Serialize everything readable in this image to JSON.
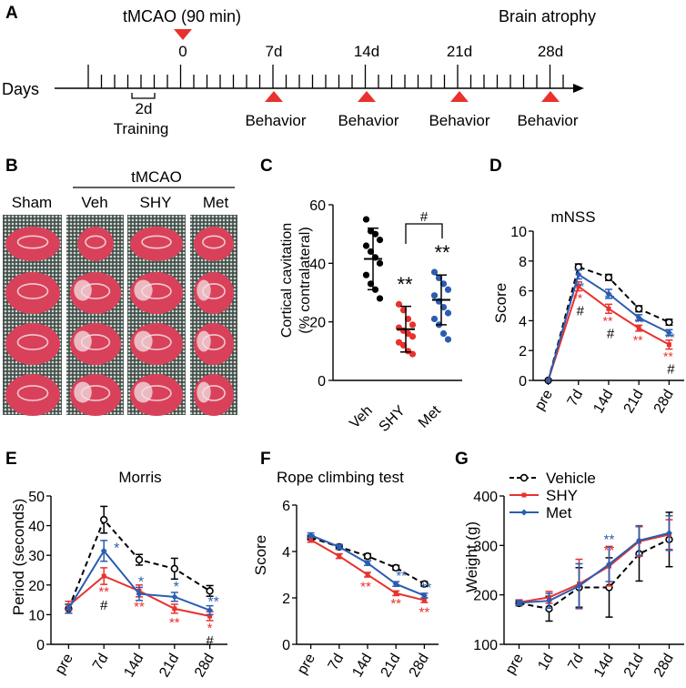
{
  "colors": {
    "vehicle": "#000000",
    "shy": "#e8322d",
    "met": "#2a5db0",
    "triangle": "#e8322d",
    "grid": "#2c3b36",
    "slice": "#d9415a"
  },
  "panelA": {
    "letter": "A",
    "mcao_label": "tMCAO (90 min)",
    "atrophy_label": "Brain atrophy",
    "days_label": "Days",
    "training_label_1": "2d",
    "training_label_2": "Training",
    "day_labels": [
      "0",
      "7d",
      "14d",
      "21d",
      "28d"
    ],
    "behavior_labels": [
      "Behavior",
      "Behavior",
      "Behavior",
      "Behavior"
    ]
  },
  "panelB": {
    "letter": "B",
    "group_header": "tMCAO",
    "columns": [
      "Sham",
      "Veh",
      "SHY",
      "Met"
    ]
  },
  "panelC": {
    "letter": "C",
    "chart_data": {
      "type": "scatter",
      "ylabel_1": "Cortical cavitation",
      "ylabel_2": "(% contralateral)",
      "categories": [
        "Veh",
        "SHY",
        "Met"
      ],
      "yticks": [
        "0",
        "20",
        "40",
        "60"
      ],
      "ylim": [
        0,
        60
      ],
      "means": [
        41.5,
        17.5,
        27.5
      ],
      "sd": [
        10.5,
        7.8,
        8.5
      ],
      "points": [
        [
          55,
          51,
          50,
          48,
          46,
          44,
          42,
          40,
          36,
          33,
          31,
          28
        ],
        [
          26,
          24,
          21,
          19,
          18,
          17,
          16,
          15,
          13,
          12,
          10,
          9
        ],
        [
          37,
          35,
          33,
          31,
          29,
          27,
          25,
          23,
          21,
          19,
          16,
          14
        ]
      ],
      "annotations": {
        "shy_sig": "**",
        "met_sig": "**",
        "bracket": "#"
      }
    }
  },
  "panelD": {
    "letter": "D",
    "chart_data": {
      "type": "line",
      "title": "mNSS",
      "ylabel": "Score",
      "x": [
        "pre",
        "7d",
        "14d",
        "21d",
        "28d"
      ],
      "yticks": [
        "0",
        "2",
        "4",
        "6",
        "8",
        "10"
      ],
      "ylim": [
        0,
        10
      ],
      "series": [
        {
          "name": "Vehicle",
          "values": [
            0,
            7.6,
            6.9,
            4.8,
            3.9
          ],
          "err": [
            0,
            0.2,
            0.2,
            0.2,
            0.2
          ]
        },
        {
          "name": "SHY",
          "values": [
            0,
            6.3,
            4.8,
            3.5,
            2.4
          ],
          "err": [
            0,
            0.3,
            0.3,
            0.2,
            0.3
          ]
        },
        {
          "name": "Met",
          "values": [
            0,
            7.1,
            5.8,
            4.2,
            3.2
          ],
          "err": [
            0,
            0.3,
            0.3,
            0.2,
            0.2
          ]
        }
      ],
      "annotations": {
        "met": [
          "**",
          "**",
          "**",
          "**"
        ],
        "shy": [
          "**",
          "**",
          "**",
          "**"
        ],
        "hash": [
          "#",
          "#",
          "#"
        ]
      }
    }
  },
  "panelE": {
    "letter": "E",
    "chart_data": {
      "type": "line",
      "title": "Morris",
      "ylabel": "Period (seconds)",
      "x": [
        "pre",
        "7d",
        "14d",
        "21d",
        "28d"
      ],
      "yticks": [
        "0",
        "10",
        "20",
        "30",
        "40",
        "50"
      ],
      "ylim": [
        0,
        50
      ],
      "series": [
        {
          "name": "Vehicle",
          "values": [
            12,
            42,
            28.5,
            25.5,
            18
          ],
          "err": [
            1.5,
            4.5,
            1.8,
            3.5,
            1.8
          ]
        },
        {
          "name": "SHY",
          "values": [
            13,
            23,
            18,
            12,
            9.5
          ],
          "err": [
            1.5,
            2.8,
            2.0,
            1.5,
            1.5
          ]
        },
        {
          "name": "Met",
          "values": [
            12,
            31.5,
            17,
            16,
            11.5
          ],
          "err": [
            1.5,
            3.5,
            2.2,
            1.5,
            1.5
          ]
        }
      ],
      "annotations": {
        "met": [
          "*",
          "*",
          "*",
          "**"
        ],
        "shy": [
          "**",
          "**",
          "**",
          "*"
        ],
        "hash": [
          "#",
          "#"
        ]
      }
    }
  },
  "panelF": {
    "letter": "F",
    "chart_data": {
      "type": "line",
      "title": "Rope climbing test",
      "ylabel": "Score",
      "x": [
        "pre",
        "7d",
        "14d",
        "21d",
        "28d"
      ],
      "yticks": [
        "0",
        "2",
        "4",
        "6"
      ],
      "ylim": [
        0,
        6
      ],
      "series": [
        {
          "name": "Vehicle",
          "values": [
            4.6,
            4.2,
            3.8,
            3.3,
            2.6
          ],
          "err": [
            0.1,
            0.1,
            0.1,
            0.1,
            0.1
          ]
        },
        {
          "name": "SHY",
          "values": [
            4.5,
            3.8,
            3.0,
            2.2,
            1.9
          ],
          "err": [
            0.1,
            0.1,
            0.1,
            0.1,
            0.1
          ]
        },
        {
          "name": "Met",
          "values": [
            4.7,
            4.2,
            3.5,
            2.6,
            2.1
          ],
          "err": [
            0.1,
            0.1,
            0.1,
            0.1,
            0.1
          ]
        }
      ],
      "annotations": {
        "met": [
          "**",
          "**"
        ],
        "shy": [
          "**",
          "**",
          "**"
        ]
      }
    }
  },
  "panelG": {
    "letter": "G",
    "chart_data": {
      "type": "line",
      "ylabel": "Weight (g)",
      "x": [
        "pre",
        "1d",
        "7d",
        "14d",
        "21d",
        "28d"
      ],
      "yticks": [
        "100",
        "200",
        "300",
        "400"
      ],
      "ylim": [
        100,
        400
      ],
      "legend": [
        "Vehicle",
        "SHY",
        "Met"
      ],
      "series": [
        {
          "name": "Vehicle",
          "values": [
            183,
            172,
            215,
            215,
            283,
            312
          ],
          "err": [
            5,
            25,
            40,
            60,
            55,
            55
          ]
        },
        {
          "name": "SHY",
          "values": [
            185,
            195,
            222,
            258,
            308,
            322
          ],
          "err": [
            5,
            12,
            50,
            40,
            30,
            30
          ]
        },
        {
          "name": "Met",
          "values": [
            184,
            188,
            218,
            262,
            310,
            325
          ],
          "err": [
            5,
            15,
            45,
            35,
            30,
            35
          ]
        }
      ],
      "annotations": {
        "met": [
          "**"
        ],
        "shy": [
          "**"
        ]
      }
    }
  }
}
